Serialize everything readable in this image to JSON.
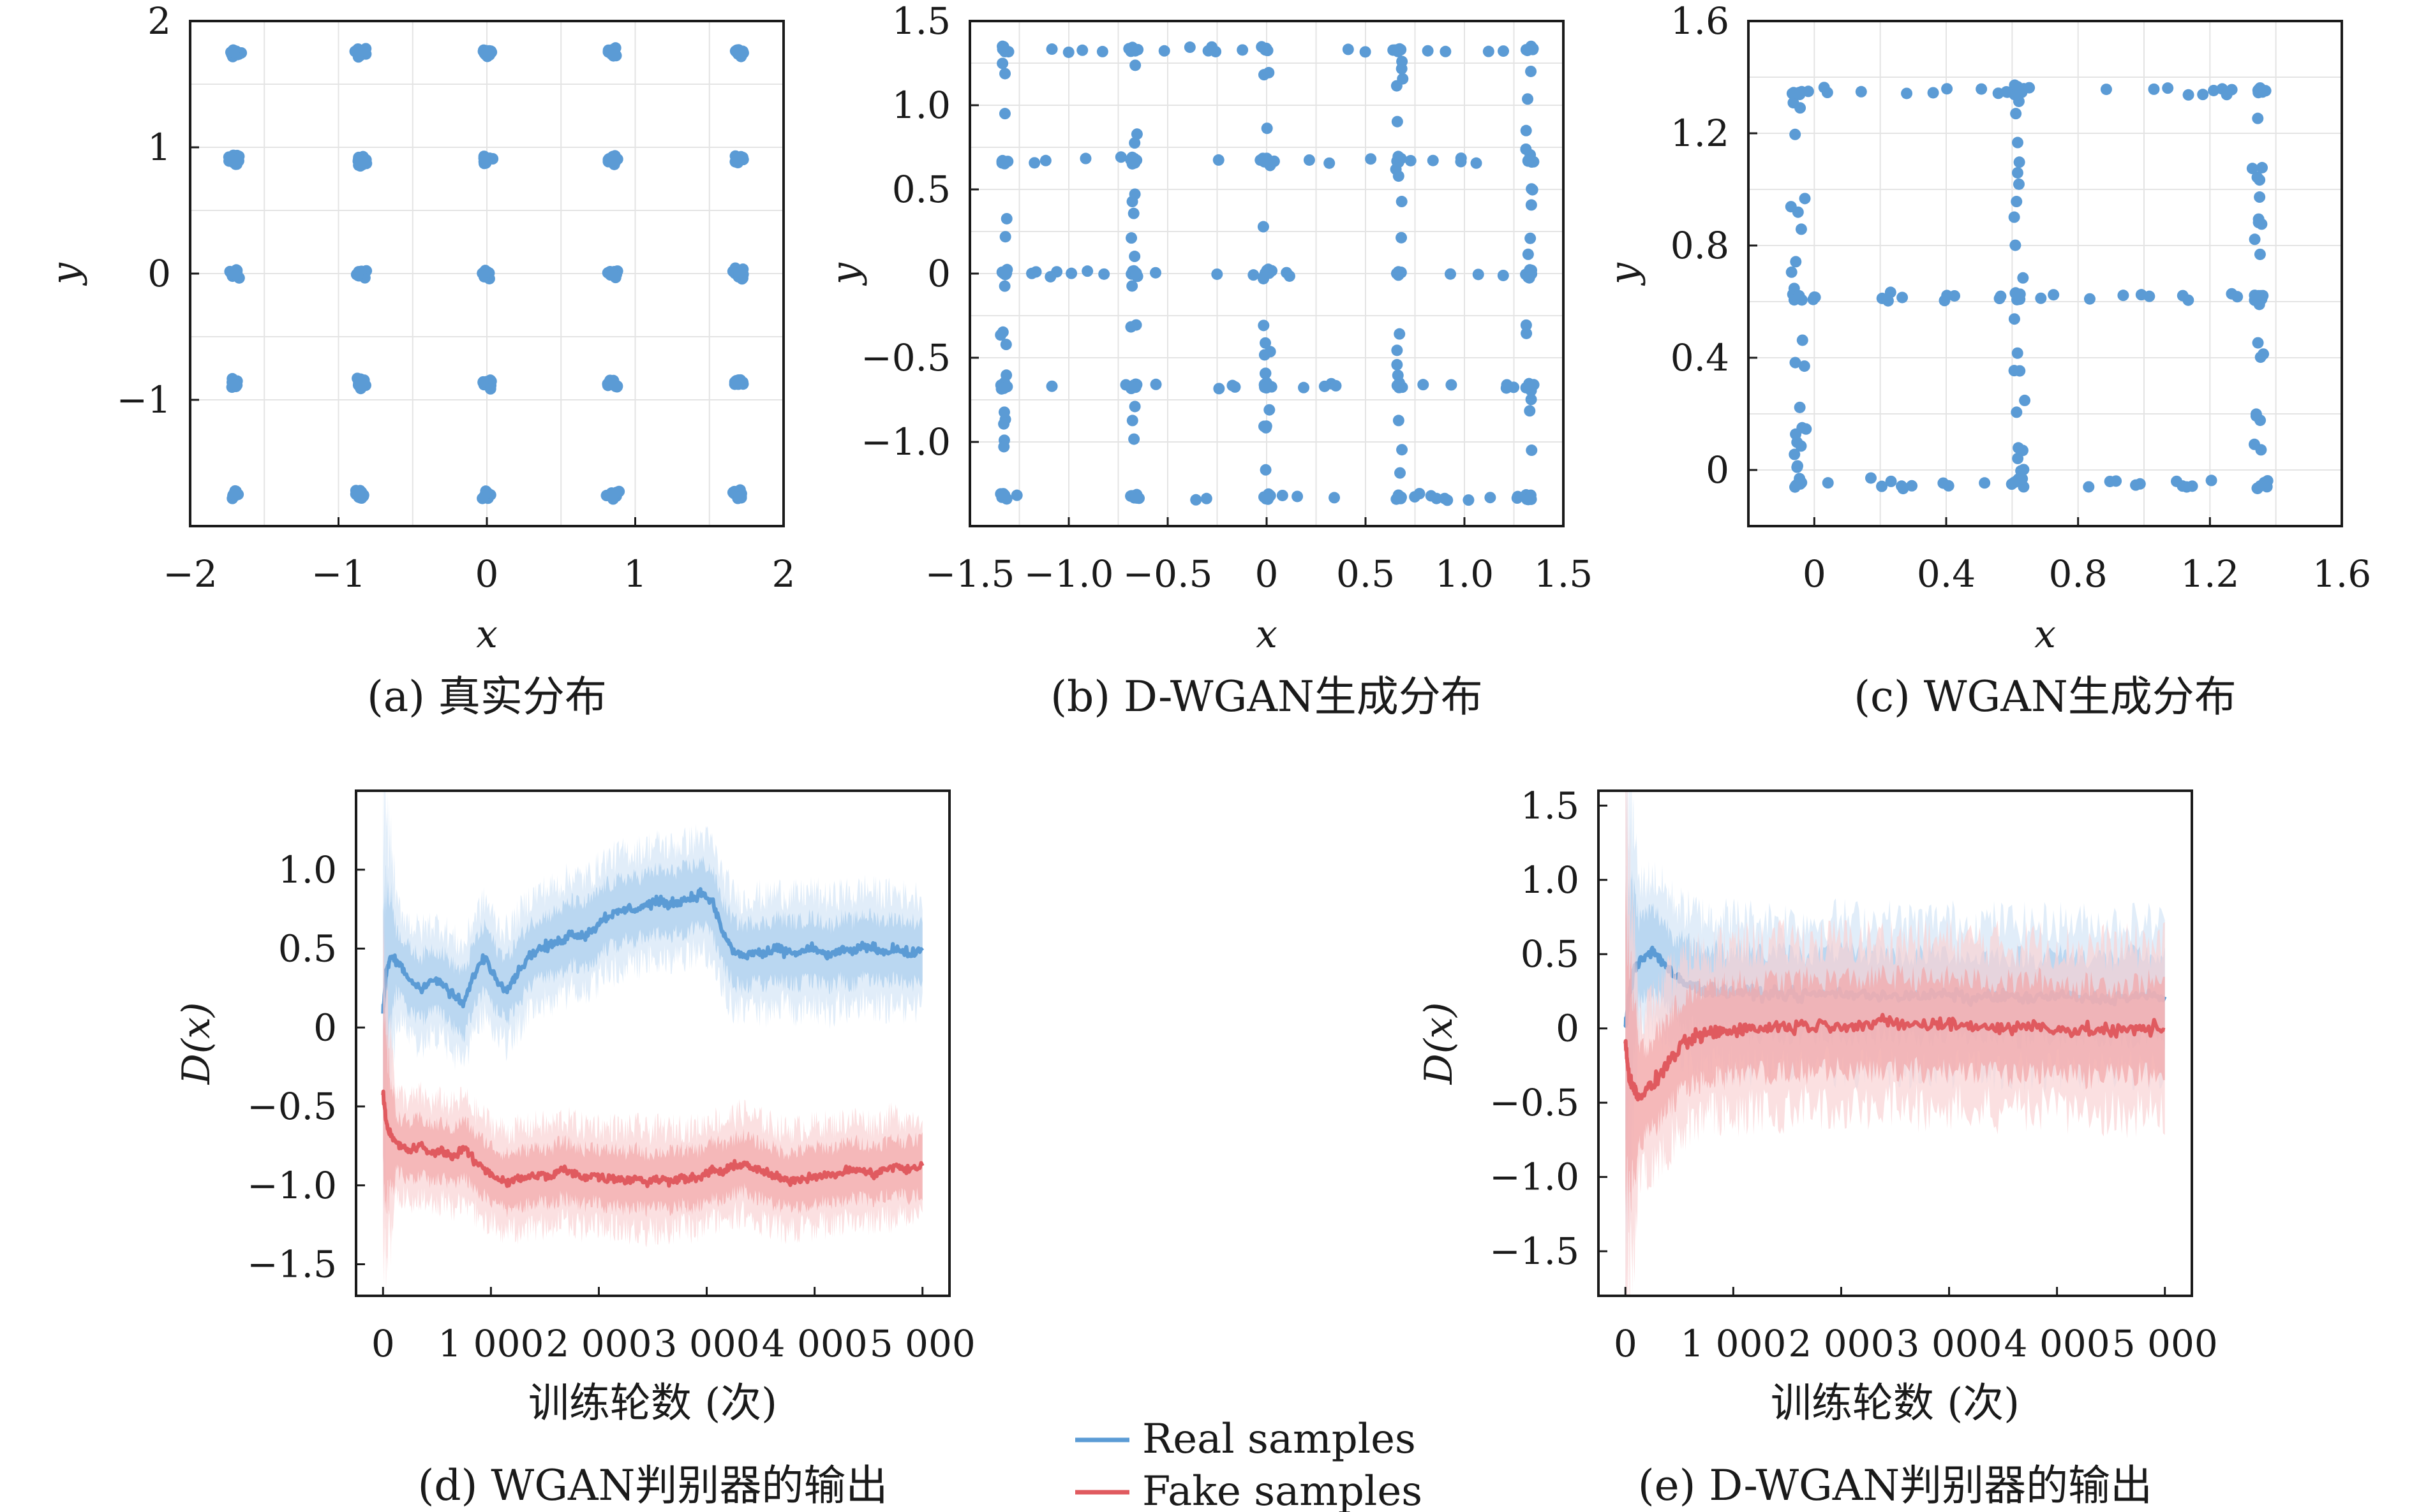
{
  "colors": {
    "real": "#5b9bd5",
    "real_band": "#a9cdee",
    "real_band_light": "#d4e6f7",
    "fake": "#e05a5f",
    "fake_band": "#f2a6a8",
    "fake_band_light": "#f9d3d4",
    "grid": "#e4e4e4",
    "axes": "#1a1a1a"
  },
  "legend": {
    "real_label": "Real samples",
    "fake_label": "Fake samples"
  },
  "chart_data": [
    {
      "id": "a",
      "type": "scatter",
      "caption": "(a) 真实分布",
      "xlabel": "x",
      "ylabel": "y",
      "xlim": [
        -2,
        2
      ],
      "ylim": [
        -2,
        2
      ],
      "xticks": [
        -2,
        -1,
        0,
        1,
        2
      ],
      "yticks": [
        -1,
        0,
        1,
        2
      ],
      "xtick_labels": [
        "−2",
        "−1",
        "0",
        "1",
        "2"
      ],
      "ytick_labels": [
        "−1",
        "0",
        "1",
        "2"
      ],
      "grid": true,
      "pattern": {
        "kind": "grid_clusters",
        "centers_x": [
          -1.7,
          -0.85,
          0,
          0.85,
          1.7
        ],
        "centers_y": [
          -1.75,
          -0.87,
          0,
          0.9,
          1.75
        ],
        "spread": 0.05,
        "points_per_cluster": 16
      }
    },
    {
      "id": "b",
      "type": "scatter",
      "caption": "(b) D-WGAN生成分布",
      "xlabel": "x",
      "ylabel": "y",
      "xlim": [
        -1.5,
        1.5
      ],
      "ylim": [
        -1.5,
        1.5
      ],
      "xticks": [
        -1.5,
        -1.0,
        -0.5,
        0,
        0.5,
        1.0,
        1.5
      ],
      "yticks": [
        -1.0,
        -0.5,
        0,
        0.5,
        1.0,
        1.5
      ],
      "xtick_labels": [
        "−1.5",
        "−1.0",
        "−0.5",
        "0",
        "0.5",
        "1.0",
        "1.5"
      ],
      "ytick_labels": [
        "−1.0",
        "−0.5",
        "0",
        "0.5",
        "1.0",
        "1.5"
      ],
      "grid": true,
      "pattern": {
        "kind": "grid_lines",
        "lines": [
          -1.33,
          -0.67,
          0,
          0.67,
          1.33
        ],
        "points_per_line": 18,
        "jitter": 0.03
      }
    },
    {
      "id": "c",
      "type": "scatter",
      "caption": "(c) WGAN生成分布",
      "xlabel": "x",
      "ylabel": "y",
      "xlim": [
        -0.2,
        1.6
      ],
      "ylim": [
        -0.2,
        1.6
      ],
      "xticks": [
        0,
        0.4,
        0.8,
        1.2,
        1.6
      ],
      "yticks": [
        0,
        0.4,
        0.8,
        1.2,
        1.6
      ],
      "xtick_labels": [
        "0",
        "0.4",
        "0.8",
        "1.2",
        "1.6"
      ],
      "ytick_labels": [
        "0",
        "0.4",
        "0.8",
        "1.2",
        "1.6"
      ],
      "grid": true,
      "pattern": {
        "kind": "grid_lines",
        "lines": [
          -0.05,
          0.62,
          1.35
        ],
        "points_per_line": 22,
        "jitter": 0.03
      }
    },
    {
      "id": "d",
      "type": "line",
      "caption": "(d) WGAN判别器的输出",
      "xlabel": "训练轮数 (次)",
      "ylabel": "D(x)",
      "xlim": [
        -250,
        5250
      ],
      "ylim": [
        -1.7,
        1.5
      ],
      "xticks": [
        0,
        1000,
        2000,
        3000,
        4000,
        5000
      ],
      "yticks": [
        -1.5,
        -1.0,
        -0.5,
        0,
        0.5,
        1.0
      ],
      "xtick_labels": [
        "0",
        "1 000",
        "2 000",
        "3 000",
        "4 000",
        "5 000"
      ],
      "ytick_labels": [
        "−1.5",
        "−1.0",
        "−0.5",
        "0",
        "0.5",
        "1.0"
      ],
      "grid": false,
      "series": [
        {
          "key": "real",
          "x": [
            0,
            30,
            80,
            150,
            250,
            350,
            450,
            550,
            650,
            750,
            850,
            950,
            1050,
            1150,
            1250,
            1350,
            1450,
            1550,
            1650,
            1750,
            1850,
            1950,
            2050,
            2150,
            2250,
            2350,
            2450,
            2550,
            2650,
            2750,
            2850,
            2950,
            3050,
            3150,
            3250,
            3350,
            3450,
            3550,
            3650,
            3750,
            3850,
            3950,
            4050,
            4150,
            4250,
            4350,
            4450,
            4550,
            4650,
            4750,
            4850,
            5000
          ],
          "values": [
            0.1,
            0.35,
            0.45,
            0.4,
            0.3,
            0.25,
            0.3,
            0.28,
            0.2,
            0.15,
            0.35,
            0.45,
            0.3,
            0.25,
            0.35,
            0.45,
            0.5,
            0.52,
            0.55,
            0.6,
            0.58,
            0.62,
            0.7,
            0.72,
            0.75,
            0.75,
            0.78,
            0.8,
            0.78,
            0.8,
            0.82,
            0.85,
            0.8,
            0.6,
            0.48,
            0.45,
            0.48,
            0.46,
            0.5,
            0.48,
            0.47,
            0.5,
            0.48,
            0.45,
            0.5,
            0.47,
            0.52,
            0.5,
            0.48,
            0.5,
            0.47,
            0.48
          ],
          "band": 0.18
        },
        {
          "key": "fake",
          "x": [
            0,
            30,
            80,
            150,
            250,
            350,
            450,
            550,
            650,
            750,
            850,
            950,
            1050,
            1150,
            1250,
            1350,
            1450,
            1550,
            1650,
            1750,
            1850,
            1950,
            2050,
            2150,
            2250,
            2350,
            2450,
            2550,
            2650,
            2750,
            2850,
            2950,
            3050,
            3150,
            3250,
            3350,
            3450,
            3550,
            3650,
            3750,
            3850,
            3950,
            4050,
            4150,
            4250,
            4350,
            4450,
            4550,
            4650,
            4750,
            4850,
            5000
          ],
          "values": [
            -0.4,
            -0.6,
            -0.7,
            -0.75,
            -0.78,
            -0.75,
            -0.8,
            -0.78,
            -0.82,
            -0.76,
            -0.85,
            -0.9,
            -0.95,
            -0.98,
            -0.96,
            -0.95,
            -0.93,
            -0.95,
            -0.9,
            -0.92,
            -0.95,
            -0.93,
            -0.96,
            -0.95,
            -0.97,
            -0.95,
            -0.98,
            -0.96,
            -0.97,
            -0.95,
            -0.96,
            -0.95,
            -0.9,
            -0.92,
            -0.88,
            -0.86,
            -0.9,
            -0.92,
            -0.95,
            -0.97,
            -0.96,
            -0.95,
            -0.93,
            -0.94,
            -0.92,
            -0.9,
            -0.91,
            -0.93,
            -0.9,
            -0.88,
            -0.9,
            -0.88
          ],
          "band": 0.16
        }
      ]
    },
    {
      "id": "e",
      "type": "line",
      "caption": "(e) D-WGAN判别器的输出",
      "xlabel": "训练轮数 (次)",
      "ylabel": "D(x)",
      "xlim": [
        -250,
        5250
      ],
      "ylim": [
        -1.8,
        1.6
      ],
      "xticks": [
        0,
        1000,
        2000,
        3000,
        4000,
        5000
      ],
      "yticks": [
        -1.5,
        -1.0,
        -0.5,
        0,
        0.5,
        1.0,
        1.5
      ],
      "xtick_labels": [
        "0",
        "1 000",
        "2 000",
        "3 000",
        "4 000",
        "5 000"
      ],
      "ytick_labels": [
        "−1.5",
        "−1.0",
        "−0.5",
        "0",
        "0.5",
        "1.0",
        "1.5"
      ],
      "grid": false,
      "series": [
        {
          "key": "real",
          "x": [
            0,
            30,
            80,
            150,
            250,
            350,
            450,
            550,
            650,
            750,
            850,
            950,
            1050,
            1200,
            1400,
            1600,
            1800,
            2000,
            2200,
            2400,
            2600,
            2800,
            3000,
            3200,
            3400,
            3600,
            3800,
            4000,
            4200,
            4400,
            4600,
            4800,
            5000
          ],
          "values": [
            0.0,
            0.2,
            0.4,
            0.48,
            0.52,
            0.45,
            0.35,
            0.3,
            0.28,
            0.25,
            0.26,
            0.24,
            0.25,
            0.23,
            0.24,
            0.22,
            0.23,
            0.24,
            0.22,
            0.23,
            0.21,
            0.22,
            0.23,
            0.2,
            0.22,
            0.21,
            0.2,
            0.22,
            0.21,
            0.2,
            0.21,
            0.22,
            0.2
          ],
          "band": 0.25
        },
        {
          "key": "fake",
          "x": [
            0,
            30,
            80,
            150,
            250,
            350,
            450,
            550,
            650,
            750,
            850,
            950,
            1050,
            1200,
            1400,
            1600,
            1800,
            2000,
            2200,
            2400,
            2600,
            2800,
            3000,
            3200,
            3400,
            3600,
            3800,
            4000,
            4200,
            4400,
            4600,
            4800,
            5000
          ],
          "values": [
            -0.1,
            -0.3,
            -0.42,
            -0.45,
            -0.38,
            -0.28,
            -0.18,
            -0.1,
            -0.06,
            -0.04,
            -0.02,
            -0.02,
            0.0,
            0.0,
            0.01,
            0.02,
            0.02,
            0.03,
            0.02,
            0.04,
            0.03,
            0.02,
            0.03,
            0.02,
            0.01,
            0.0,
            0.02,
            0.0,
            -0.02,
            -0.01,
            -0.02,
            0.0,
            0.0
          ],
          "band": 0.28
        }
      ]
    }
  ]
}
